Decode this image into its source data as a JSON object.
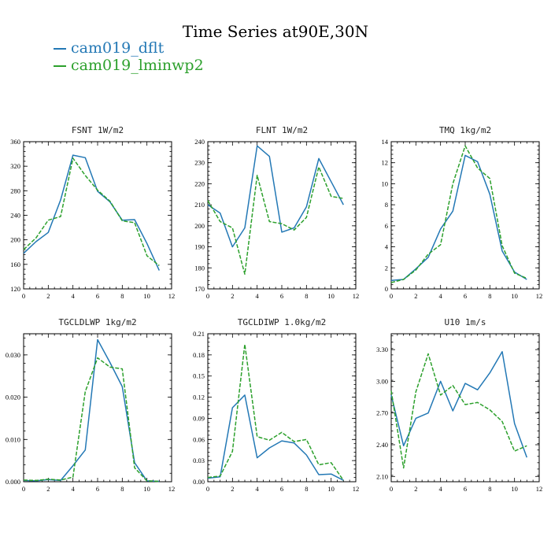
{
  "title": "Time Series at90E,30N",
  "colors": {
    "series_0": "#2378b5",
    "series_1": "#2ca02c"
  },
  "legend": [
    {
      "name": "cam019_dflt",
      "color": "#2378b5",
      "dash": "solid"
    },
    {
      "name": "cam019_lminwp2",
      "color": "#2ca02c",
      "dash": "dashed"
    }
  ],
  "chart_data": [
    {
      "type": "line",
      "title": "FSNT  1W/m2",
      "x": [
        0,
        1,
        2,
        3,
        4,
        5,
        6,
        7,
        8,
        9,
        10,
        11
      ],
      "xlim": [
        0,
        12
      ],
      "xticks": [
        0,
        2,
        4,
        6,
        8,
        10,
        12
      ],
      "ylim": [
        120,
        360
      ],
      "yticks": [
        120,
        160,
        200,
        240,
        280,
        320,
        360
      ],
      "ytick_labels": [
        "120",
        "160",
        "200",
        "240",
        "280",
        "320",
        "360"
      ],
      "series": [
        {
          "name": "cam019_dflt",
          "values": [
            178,
            197,
            212,
            265,
            338,
            334,
            279,
            262,
            232,
            233,
            194,
            150
          ]
        },
        {
          "name": "cam019_lminwp2",
          "values": [
            184,
            203,
            232,
            238,
            333,
            305,
            281,
            263,
            231,
            228,
            174,
            158
          ]
        }
      ]
    },
    {
      "type": "line",
      "title": "FLNT  1W/m2",
      "x": [
        0,
        1,
        2,
        3,
        4,
        5,
        6,
        7,
        8,
        9,
        10,
        11
      ],
      "xlim": [
        0,
        12
      ],
      "xticks": [
        0,
        2,
        4,
        6,
        8,
        10,
        12
      ],
      "ylim": [
        170,
        240
      ],
      "yticks": [
        170,
        180,
        190,
        200,
        210,
        220,
        230,
        240
      ],
      "ytick_labels": [
        "170",
        "180",
        "190",
        "200",
        "210",
        "220",
        "230",
        "240"
      ],
      "series": [
        {
          "name": "cam019_dflt",
          "values": [
            210,
            206,
            190,
            199,
            238,
            233,
            197,
            199,
            209,
            232,
            221,
            210
          ]
        },
        {
          "name": "cam019_lminwp2",
          "values": [
            212,
            202,
            199,
            177,
            224,
            202,
            201,
            198,
            204,
            228,
            214,
            213
          ]
        }
      ]
    },
    {
      "type": "line",
      "title": "TMQ  1kg/m2",
      "x": [
        0,
        1,
        2,
        3,
        4,
        5,
        6,
        7,
        8,
        9,
        10,
        11
      ],
      "xlim": [
        0,
        12
      ],
      "xticks": [
        0,
        2,
        4,
        6,
        8,
        10,
        12
      ],
      "ylim": [
        0,
        14
      ],
      "yticks": [
        0,
        2,
        4,
        6,
        8,
        10,
        12,
        14
      ],
      "ytick_labels": [
        "0",
        "2",
        "4",
        "6",
        "8",
        "10",
        "12",
        "14"
      ],
      "series": [
        {
          "name": "cam019_dflt",
          "values": [
            0.8,
            0.9,
            1.9,
            3.0,
            5.7,
            7.4,
            12.7,
            12.1,
            9.0,
            3.6,
            1.6,
            0.9
          ]
        },
        {
          "name": "cam019_lminwp2",
          "values": [
            0.6,
            0.9,
            1.8,
            3.3,
            4.2,
            10.0,
            13.6,
            11.5,
            10.5,
            4.1,
            1.5,
            1.0
          ]
        }
      ]
    },
    {
      "type": "line",
      "title": "TGCLDLWP  1kg/m2",
      "x": [
        0,
        1,
        2,
        3,
        4,
        5,
        6,
        7,
        8,
        9,
        10,
        11
      ],
      "xlim": [
        0,
        12
      ],
      "xticks": [
        0,
        2,
        4,
        6,
        8,
        10,
        12
      ],
      "ylim": [
        0,
        0.035
      ],
      "yticks": [
        0,
        0.01,
        0.02,
        0.03
      ],
      "ytick_labels": [
        "0.000",
        "0.010",
        "0.020",
        "0.030"
      ],
      "series": [
        {
          "name": "cam019_dflt",
          "values": [
            0.0003,
            0.0002,
            0.0005,
            0.0003,
            0.0038,
            0.0075,
            0.0336,
            0.0282,
            0.0225,
            0.0045,
            0.0002,
            0.0001
          ]
        },
        {
          "name": "cam019_lminwp2",
          "values": [
            0.0004,
            0.0003,
            0.0006,
            0.0004,
            0.0011,
            0.0213,
            0.0293,
            0.0271,
            0.0267,
            0.0033,
            0.0002,
            0.0001
          ]
        }
      ]
    },
    {
      "type": "line",
      "title": "TGCLDIWP  1.0kg/m2",
      "x": [
        0,
        1,
        2,
        3,
        4,
        5,
        6,
        7,
        8,
        9,
        10,
        11
      ],
      "xlim": [
        0,
        12
      ],
      "xticks": [
        0,
        2,
        4,
        6,
        8,
        10,
        12
      ],
      "ylim": [
        0,
        0.21
      ],
      "yticks": [
        0,
        0.03,
        0.06,
        0.09,
        0.12,
        0.15,
        0.18,
        0.21
      ],
      "ytick_labels": [
        "0.00",
        "0.03",
        "0.06",
        "0.09",
        "0.12",
        "0.15",
        "0.18",
        "0.21"
      ],
      "series": [
        {
          "name": "cam019_dflt",
          "values": [
            0.005,
            0.007,
            0.105,
            0.123,
            0.034,
            0.048,
            0.058,
            0.055,
            0.038,
            0.01,
            0.011,
            0.002
          ]
        },
        {
          "name": "cam019_lminwp2",
          "values": [
            0.006,
            0.008,
            0.043,
            0.195,
            0.064,
            0.059,
            0.07,
            0.057,
            0.06,
            0.024,
            0.027,
            0.002
          ]
        }
      ]
    },
    {
      "type": "line",
      "title": "U10  1m/s",
      "x": [
        0,
        1,
        2,
        3,
        4,
        5,
        6,
        7,
        8,
        9,
        10,
        11
      ],
      "xlim": [
        0,
        12
      ],
      "xticks": [
        0,
        2,
        4,
        6,
        8,
        10,
        12
      ],
      "ylim": [
        2.05,
        3.45
      ],
      "yticks": [
        2.1,
        2.4,
        2.7,
        3.0,
        3.3
      ],
      "ytick_labels": [
        "2.10",
        "2.40",
        "2.70",
        "3.00",
        "3.30"
      ],
      "series": [
        {
          "name": "cam019_dflt",
          "values": [
            2.87,
            2.39,
            2.65,
            2.7,
            3.0,
            2.72,
            2.98,
            2.92,
            3.08,
            3.28,
            2.6,
            2.28
          ]
        },
        {
          "name": "cam019_lminwp2",
          "values": [
            2.91,
            2.18,
            2.9,
            3.26,
            2.87,
            2.96,
            2.78,
            2.8,
            2.73,
            2.62,
            2.34,
            2.39
          ]
        }
      ]
    }
  ]
}
